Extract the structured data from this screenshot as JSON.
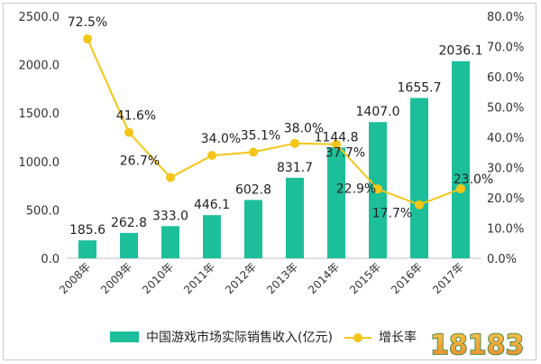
{
  "chart_data": {
    "type": "bar",
    "categories": [
      "2008年",
      "2009年",
      "2010年",
      "2011年",
      "2012年",
      "2013年",
      "2014年",
      "2015年",
      "2016年",
      "2017年"
    ],
    "series": [
      {
        "name": "中国游戏市场实际销售收入(亿元)",
        "type": "bar",
        "axis": "left",
        "color": "#1dbf9b",
        "values": [
          185.6,
          262.8,
          333.0,
          446.1,
          602.8,
          831.7,
          1144.8,
          1407.0,
          1655.7,
          2036.1
        ],
        "labels": [
          "185.6",
          "262.8",
          "333.0",
          "446.1",
          "602.8",
          "831.7",
          "1144.8",
          "1407.0",
          "1655.7",
          "2036.1"
        ]
      },
      {
        "name": "增长率",
        "type": "line",
        "axis": "right",
        "color": "#f5c518",
        "values": [
          72.5,
          41.6,
          26.7,
          34.0,
          35.1,
          38.0,
          37.7,
          22.9,
          17.7,
          23.0
        ],
        "labels": [
          "72.5%",
          "41.6%",
          "26.7%",
          "34.0%",
          "35.1%",
          "38.0%",
          "37.7%",
          "22.9%",
          "17.7%",
          "23.0%"
        ]
      }
    ],
    "y_left": {
      "ylim": [
        0,
        2500
      ],
      "ticks": [
        "0.0",
        "500.0",
        "1000.0",
        "1500.0",
        "2000.0",
        "2500.0"
      ]
    },
    "y_right": {
      "ylim": [
        0,
        80
      ],
      "ticks": [
        "0.0%",
        "10.0%",
        "20.0%",
        "30.0%",
        "40.0%",
        "50.0%",
        "60.0%",
        "70.0%",
        "80.0%"
      ]
    },
    "grid": false,
    "legend_position": "bottom"
  },
  "watermark": {
    "text": "18183"
  }
}
